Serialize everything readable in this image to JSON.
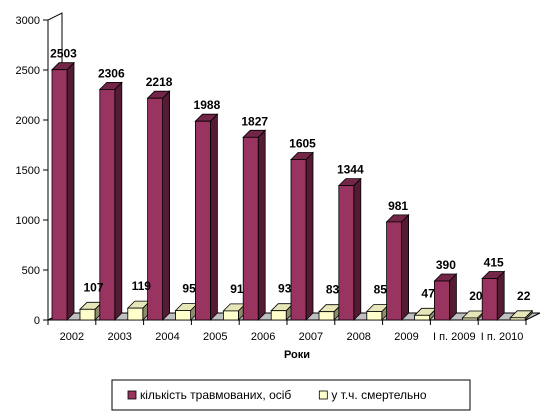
{
  "chart_data": {
    "type": "bar",
    "three_d": true,
    "xlabel": "Роки",
    "ylabel": "",
    "ylim": [
      0,
      3000
    ],
    "yticks": [
      0,
      500,
      1000,
      1500,
      2000,
      2500,
      3000
    ],
    "grid": false,
    "legend_position": "bottom",
    "categories": [
      "2002",
      "2003",
      "2004",
      "2005",
      "2006",
      "2007",
      "2008",
      "2009",
      "І п. 2009",
      "І п. 2010"
    ],
    "series": [
      {
        "name": "кількість травмованих, осіб",
        "color": "#99335f",
        "values": [
          2503,
          2306,
          2218,
          1988,
          1827,
          1605,
          1344,
          981,
          390,
          415
        ]
      },
      {
        "name": "у т.ч. смертельно",
        "color": "#ffffcc",
        "values": [
          107,
          119,
          95,
          91,
          93,
          83,
          85,
          47,
          20,
          22
        ]
      }
    ]
  }
}
